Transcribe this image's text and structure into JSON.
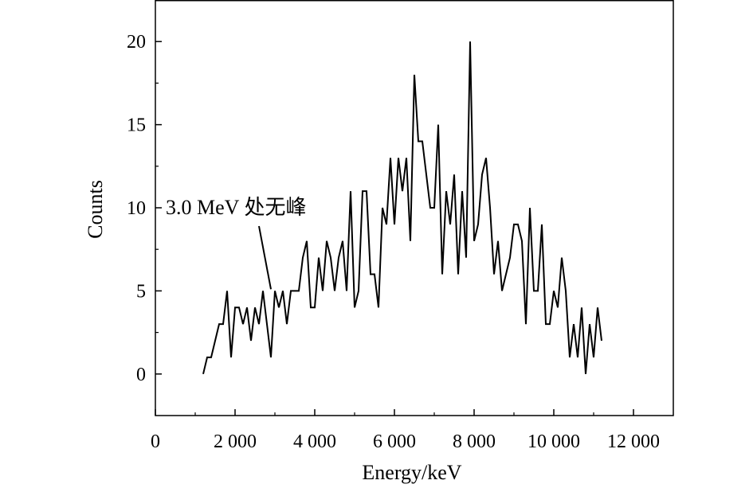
{
  "chart_data": {
    "type": "line",
    "xlabel": "Energy/keV",
    "ylabel": "Counts",
    "xlim": [
      0,
      13000
    ],
    "ylim": [
      -2.5,
      22.5
    ],
    "x_ticks": [
      0,
      2000,
      4000,
      6000,
      8000,
      10000,
      12000
    ],
    "x_tick_labels": [
      "0",
      "2 000",
      "4 000",
      "6 000",
      "8 000",
      "10 000",
      "12 000"
    ],
    "y_ticks": [
      0,
      5,
      10,
      15,
      20
    ],
    "y_tick_labels": [
      "0",
      "5",
      "10",
      "15",
      "20"
    ],
    "grid": false,
    "line_color": "#000000",
    "series": [
      {
        "x": [
          1200,
          1300,
          1400,
          1500,
          1600,
          1700,
          1800,
          1900,
          2000,
          2100,
          2200,
          2300,
          2400,
          2500,
          2600,
          2700,
          2800,
          2900,
          3000,
          3100,
          3200,
          3300,
          3400,
          3500,
          3600,
          3700,
          3800,
          3900,
          4000,
          4100,
          4200,
          4300,
          4400,
          4500,
          4600,
          4700,
          4800,
          4900,
          5000,
          5100,
          5200,
          5300,
          5400,
          5500,
          5600,
          5700,
          5800,
          5900,
          6000,
          6100,
          6200,
          6300,
          6400,
          6500,
          6600,
          6700,
          6800,
          6900,
          7000,
          7100,
          7200,
          7300,
          7400,
          7500,
          7600,
          7700,
          7800,
          7900,
          8000,
          8100,
          8200,
          8300,
          8400,
          8500,
          8600,
          8700,
          8800,
          8900,
          9000,
          9100,
          9200,
          9300,
          9400,
          9500,
          9600,
          9700,
          9800,
          9900,
          10000,
          10100,
          10200,
          10300,
          10400,
          10500,
          10600,
          10700,
          10800,
          10900,
          11000,
          11100,
          11200
        ],
        "values": [
          0,
          1,
          1,
          2,
          3,
          3,
          5,
          1,
          4,
          4,
          3,
          4,
          2,
          4,
          3,
          5,
          3,
          1,
          5,
          4,
          5,
          3,
          5,
          5,
          5,
          7,
          8,
          4,
          4,
          7,
          5,
          8,
          7,
          5,
          7,
          8,
          5,
          11,
          4,
          5,
          11,
          11,
          6,
          6,
          4,
          10,
          9,
          13,
          9,
          13,
          11,
          13,
          8,
          18,
          14,
          14,
          12,
          10,
          10,
          15,
          6,
          11,
          9,
          12,
          6,
          11,
          7,
          20,
          8,
          9,
          12,
          13,
          10,
          6,
          8,
          5,
          6,
          7,
          9,
          9,
          8,
          3,
          10,
          5,
          5,
          9,
          3,
          3,
          5,
          4,
          7,
          5,
          1,
          3,
          1,
          4,
          0,
          3,
          1,
          4,
          2
        ]
      }
    ],
    "annotations": [
      {
        "text": "3.0 MeV 处无峰",
        "points_to": {
          "x": 2900,
          "y": 5.1
        }
      }
    ]
  }
}
